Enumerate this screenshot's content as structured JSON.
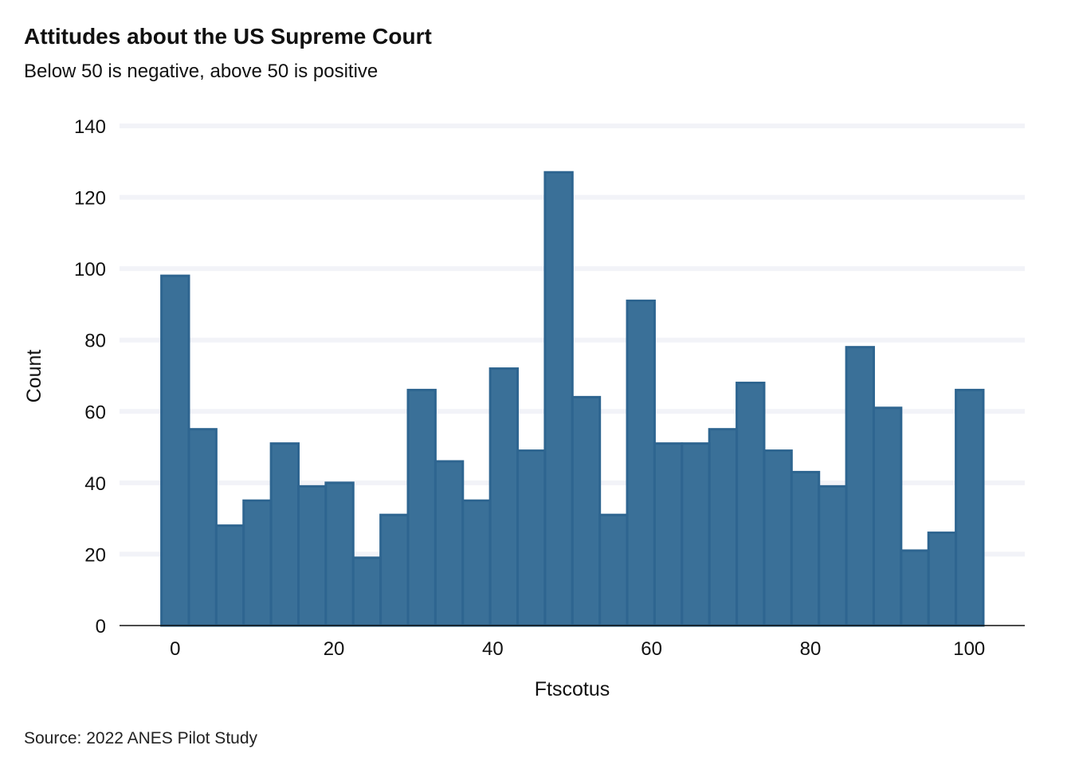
{
  "chart_data": {
    "type": "bar",
    "title": "Attitudes about the US Supreme Court",
    "subtitle": "Below 50 is negative, above 50 is positive",
    "caption": "Source: 2022 ANES Pilot Study",
    "xlabel": "Ftscotus",
    "ylabel": "Count",
    "xlim": [
      -7,
      107
    ],
    "ylim": [
      0,
      140
    ],
    "xticks": [
      0,
      20,
      40,
      60,
      80,
      100
    ],
    "yticks": [
      0,
      20,
      40,
      60,
      80,
      100,
      120,
      140
    ],
    "bin_width": 3.45,
    "bin_start": -1.72,
    "values": [
      98,
      55,
      28,
      35,
      51,
      39,
      40,
      19,
      31,
      66,
      46,
      35,
      72,
      49,
      127,
      64,
      31,
      91,
      51,
      51,
      55,
      68,
      49,
      43,
      39,
      78,
      61,
      21,
      26,
      66
    ],
    "grid": "horizontal",
    "colors": {
      "bar_fill": "#3a7098",
      "bar_stroke": "#2e6590",
      "grid": "#f2f3f8",
      "axis": "#111111"
    }
  }
}
